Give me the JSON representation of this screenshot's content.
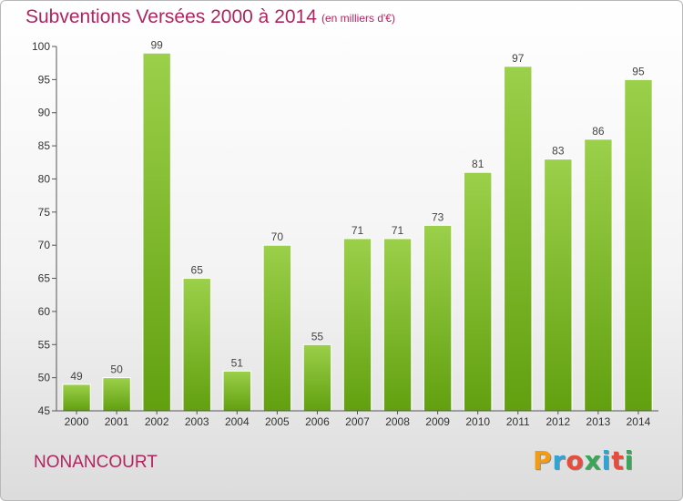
{
  "title": "Subventions Versées 2000 à 2014",
  "subtitle": "(en milliers d'€)",
  "commune": "NONANCOURT",
  "logo": {
    "letters": [
      "P",
      "r",
      "o",
      "x",
      "i",
      "t",
      "i"
    ],
    "colors": [
      "#f39c12",
      "#2aa7d8",
      "#e74c3c",
      "#3aa657",
      "#2aa7d8",
      "#e74c3c",
      "#3aa657"
    ]
  },
  "colors": {
    "title": "#b0245f",
    "bar_light": "#9bd04a",
    "bar_dark": "#62a010",
    "axis": "#555555"
  },
  "chart_data": {
    "type": "bar",
    "title": "Subventions Versées 2000 à 2014",
    "xlabel": "",
    "ylabel": "",
    "ylim": [
      45,
      100
    ],
    "yticks": [
      45,
      50,
      55,
      60,
      65,
      70,
      75,
      80,
      85,
      90,
      95,
      100
    ],
    "grid": false,
    "categories": [
      "2000",
      "2001",
      "2002",
      "2003",
      "2004",
      "2005",
      "2006",
      "2007",
      "2008",
      "2009",
      "2010",
      "2011",
      "2012",
      "2013",
      "2014"
    ],
    "values": [
      49,
      50,
      99,
      65,
      51,
      70,
      55,
      71,
      71,
      73,
      81,
      97,
      83,
      86,
      95
    ]
  }
}
